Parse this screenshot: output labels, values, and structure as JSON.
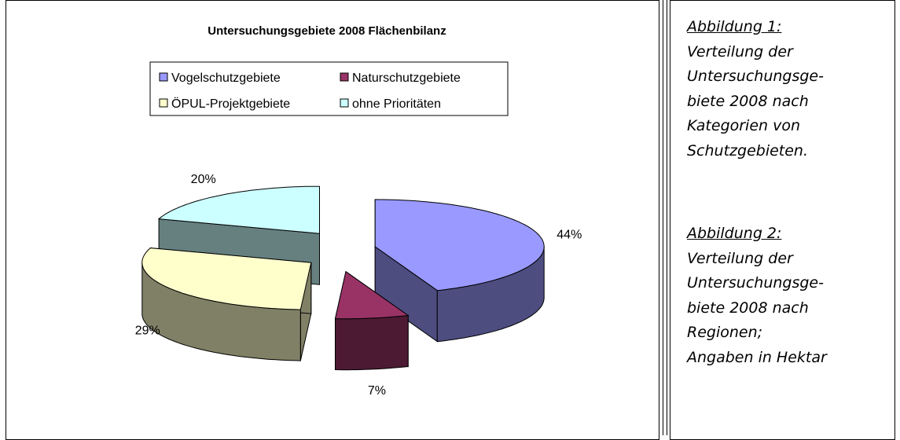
{
  "chart_data": {
    "type": "pie",
    "title": "Untersuchungsgebiete 2008 Flächenbilanz",
    "categories": [
      "Vogelschutzgebiete",
      "Naturschutzgebiete",
      "ÖPUL-Projektgebiete",
      "ohne Prioritäten"
    ],
    "values": [
      44,
      7,
      29,
      20
    ],
    "value_labels": [
      "44%",
      "7%",
      "29%",
      "20%"
    ],
    "colors": [
      "#9999ff",
      "#993366",
      "#ffffcc",
      "#ccffff"
    ]
  },
  "captions": [
    {
      "heading": "Abbildung 1:",
      "lines": [
        "Verteilung der",
        "Untersuchungsge-",
        "biete 2008 nach",
        "Kategorien von",
        "Schutzgebieten."
      ]
    },
    {
      "heading": "Abbildung 2:",
      "lines": [
        "Verteilung der",
        "Untersuchungsge-",
        "biete 2008 nach",
        "Regionen;",
        "Angaben in Hektar"
      ]
    }
  ]
}
